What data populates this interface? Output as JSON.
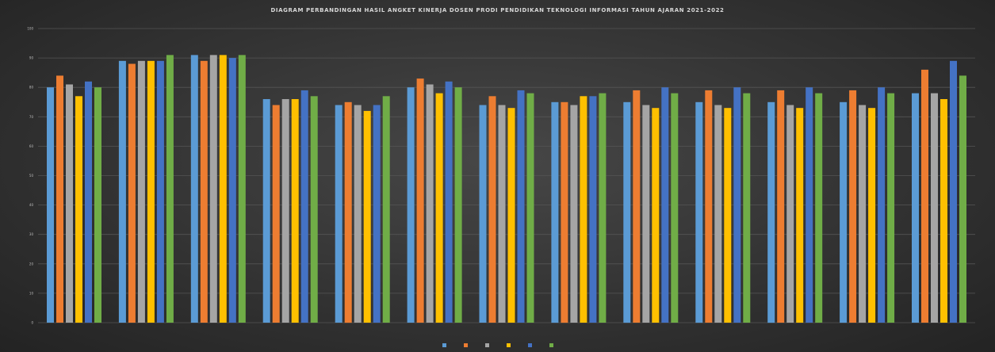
{
  "chart_data": {
    "type": "bar",
    "title": "DIAGRAM PERBANDINGAN HASIL ANGKET KINERJA DOSEN PRODI PENDIDIKAN TEKNOLOGI INFORMASI TAHUN AJARAN 2021-2022",
    "xlabel": "",
    "ylabel": "",
    "ylim": [
      0,
      100
    ],
    "grid": true,
    "legend_position": "bottom",
    "categories": [
      "",
      "",
      "",
      "",
      "",
      "",
      "",
      "",
      "",
      "",
      "",
      "",
      ""
    ],
    "series": [
      {
        "color": "#5b9bd5",
        "values": [
          80,
          89,
          91,
          76,
          74,
          80,
          74,
          75,
          75,
          75,
          75,
          75,
          78
        ]
      },
      {
        "color": "#ed7d31",
        "values": [
          84,
          88,
          89,
          74,
          75,
          83,
          77,
          75,
          79,
          79,
          79,
          79,
          86
        ]
      },
      {
        "color": "#a5a5a5",
        "values": [
          81,
          89,
          91,
          76,
          74,
          81,
          74,
          74,
          74,
          74,
          74,
          74,
          78
        ]
      },
      {
        "color": "#ffc000",
        "values": [
          77,
          89,
          91,
          76,
          72,
          78,
          73,
          77,
          73,
          73,
          73,
          73,
          76
        ]
      },
      {
        "color": "#4472c4",
        "values": [
          82,
          89,
          90,
          79,
          74,
          82,
          79,
          77,
          80,
          80,
          80,
          80,
          89
        ]
      },
      {
        "color": "#70ad47",
        "values": [
          80,
          91,
          91,
          77,
          77,
          80,
          78,
          78,
          78,
          78,
          78,
          78,
          84
        ]
      }
    ],
    "colors": {
      "background": "#333333",
      "gridline": "#555555",
      "axis_text": "#bdbdbd"
    }
  }
}
